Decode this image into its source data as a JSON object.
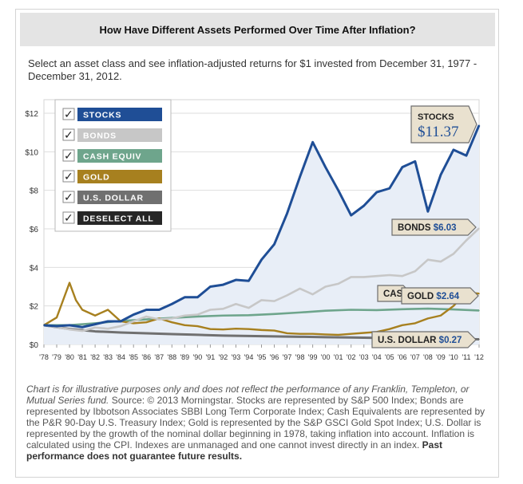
{
  "header": {
    "title": "How Have Different Assets Performed Over Time After Inflation?"
  },
  "intro": "Select an asset class and see inflation-adjusted returns for $1 invested from December 31, 1977 - December 31, 2012.",
  "legend": [
    {
      "label": "STOCKS",
      "checked": true,
      "color": "#1f4e96",
      "checkmark": "✓"
    },
    {
      "label": "BONDS",
      "checked": true,
      "color": "#c7c7c7",
      "checkmark": "✓"
    },
    {
      "label": "CASH EQUIV",
      "checked": true,
      "color": "#6ea58c",
      "checkmark": "✓"
    },
    {
      "label": "GOLD",
      "checked": true,
      "color": "#a7801f",
      "checkmark": "✓"
    },
    {
      "label": "U.S. DOLLAR",
      "checked": true,
      "color": "#707070",
      "checkmark": "✓"
    },
    {
      "label": "DESELECT ALL",
      "checked": true,
      "color": "#262626",
      "checkmark": "✓"
    }
  ],
  "chart_data": {
    "type": "line",
    "xlabel": "",
    "ylabel": "",
    "xlim": [
      1978,
      2012
    ],
    "ylim": [
      0,
      12
    ],
    "x_tick_labels": [
      "'78",
      "'79",
      "'80",
      "'81",
      "'82",
      "'83",
      "'84",
      "'85",
      "'86",
      "'87",
      "'88",
      "'89",
      "'90",
      "'91",
      "'92",
      "'93",
      "'94",
      "'95",
      "'96",
      "'97",
      "'98",
      "'99",
      "'00",
      "'01",
      "'02",
      "'03",
      "'04",
      "'05",
      "'06",
      "'07",
      "'08",
      "'09",
      "'10",
      "'11",
      "'12"
    ],
    "y_ticks": [
      0,
      2,
      4,
      6,
      8,
      10,
      12
    ],
    "y_tick_labels": [
      "$0",
      "$2",
      "$4",
      "$6",
      "$8",
      "$10",
      "$12"
    ],
    "grid": true,
    "series": [
      {
        "name": "STOCKS",
        "color": "#1f4e96",
        "x": [
          1978,
          1979,
          1980,
          1981,
          1982,
          1983,
          1984,
          1985,
          1986,
          1987,
          1988,
          1989,
          1990,
          1991,
          1992,
          1993,
          1994,
          1995,
          1996,
          1997,
          1998,
          1999,
          2000,
          2001,
          2002,
          2003,
          2004,
          2005,
          2006,
          2007,
          2008,
          2009,
          2010,
          2011,
          2012
        ],
        "y": [
          1.0,
          0.95,
          1.0,
          0.9,
          1.05,
          1.2,
          1.2,
          1.55,
          1.8,
          1.8,
          2.1,
          2.45,
          2.45,
          3.0,
          3.1,
          3.35,
          3.3,
          4.4,
          5.2,
          6.8,
          8.7,
          10.5,
          9.2,
          8.0,
          6.7,
          7.2,
          7.9,
          8.1,
          9.2,
          9.5,
          6.9,
          8.8,
          10.1,
          9.8,
          11.37
        ]
      },
      {
        "name": "BONDS",
        "color": "#c7c7c7",
        "x": [
          1978,
          1979,
          1980,
          1981,
          1982,
          1983,
          1984,
          1985,
          1986,
          1987,
          1988,
          1989,
          1990,
          1991,
          1992,
          1993,
          1994,
          1995,
          1996,
          1997,
          1998,
          1999,
          2000,
          2001,
          2002,
          2003,
          2004,
          2005,
          2006,
          2007,
          2008,
          2009,
          2010,
          2011,
          2012
        ],
        "y": [
          1.0,
          0.9,
          0.78,
          0.7,
          0.88,
          0.82,
          0.95,
          1.2,
          1.45,
          1.3,
          1.35,
          1.5,
          1.55,
          1.8,
          1.85,
          2.1,
          1.9,
          2.3,
          2.25,
          2.55,
          2.9,
          2.6,
          3.0,
          3.15,
          3.5,
          3.5,
          3.55,
          3.6,
          3.55,
          3.8,
          4.4,
          4.3,
          4.7,
          5.4,
          6.03
        ]
      },
      {
        "name": "CASH EQUIV",
        "color": "#6ea58c",
        "x": [
          1978,
          1980,
          1982,
          1984,
          1986,
          1988,
          1990,
          1992,
          1994,
          1996,
          1998,
          2000,
          2002,
          2004,
          2006,
          2008,
          2010,
          2012
        ],
        "y": [
          1.0,
          1.0,
          1.1,
          1.22,
          1.3,
          1.38,
          1.45,
          1.5,
          1.52,
          1.58,
          1.66,
          1.75,
          1.8,
          1.78,
          1.83,
          1.86,
          1.82,
          1.76
        ]
      },
      {
        "name": "GOLD",
        "color": "#a7801f",
        "x": [
          1978,
          1979,
          1980,
          1980.5,
          1981,
          1982,
          1983,
          1984,
          1985,
          1986,
          1987,
          1988,
          1989,
          1990,
          1991,
          1992,
          1993,
          1994,
          1995,
          1996,
          1997,
          1998,
          1999,
          2000,
          2001,
          2002,
          2003,
          2004,
          2005,
          2006,
          2007,
          2008,
          2009,
          2010,
          2011,
          2012
        ],
        "y": [
          1.0,
          1.4,
          3.2,
          2.3,
          1.8,
          1.5,
          1.8,
          1.2,
          1.1,
          1.15,
          1.35,
          1.15,
          1.0,
          0.95,
          0.8,
          0.78,
          0.82,
          0.8,
          0.75,
          0.72,
          0.58,
          0.55,
          0.55,
          0.52,
          0.5,
          0.55,
          0.6,
          0.65,
          0.8,
          1.0,
          1.1,
          1.35,
          1.5,
          2.0,
          2.7,
          2.64
        ]
      },
      {
        "name": "U.S. DOLLAR",
        "color": "#707070",
        "x": [
          1978,
          1980,
          1982,
          1984,
          1986,
          1988,
          1990,
          1992,
          1994,
          1996,
          1998,
          2000,
          2002,
          2004,
          2006,
          2008,
          2010,
          2012
        ],
        "y": [
          1.0,
          0.8,
          0.68,
          0.62,
          0.58,
          0.54,
          0.5,
          0.46,
          0.44,
          0.42,
          0.4,
          0.38,
          0.36,
          0.34,
          0.32,
          0.3,
          0.28,
          0.27
        ]
      }
    ],
    "end_labels": [
      {
        "series": "STOCKS",
        "name": "STOCKS",
        "value": "$11.37"
      },
      {
        "series": "BONDS",
        "name": "BONDS",
        "value": "$6.03"
      },
      {
        "series": "CASH EQUIV",
        "name": "CAS",
        "value": ""
      },
      {
        "series": "GOLD",
        "name": "GOLD",
        "value": "$2.64"
      },
      {
        "series": "U.S. DOLLAR",
        "name": "U.S. DOLLAR",
        "value": "$0.27"
      }
    ]
  },
  "footnote": {
    "italic": "Chart is for illustrative purposes only and does not reflect the performance of any Franklin, Templeton, or Mutual Series fund.",
    "text": " Source: © 2013 Morningstar. Stocks are represented by S&P 500 Index; Bonds are represented by Ibbotson Associates SBBI Long Term Corporate Index; Cash Equivalents are represented by the P&R 90-Day U.S. Treasury Index; Gold is represented by the S&P GSCI Gold Spot Index; U.S. Dollar is represented by the growth of the nominal dollar beginning in 1978, taking inflation into account. Inflation is calculated using the CPI. Indexes are unmanaged and one cannot invest directly in an index. ",
    "bold": "Past performance does not guarantee future results."
  }
}
